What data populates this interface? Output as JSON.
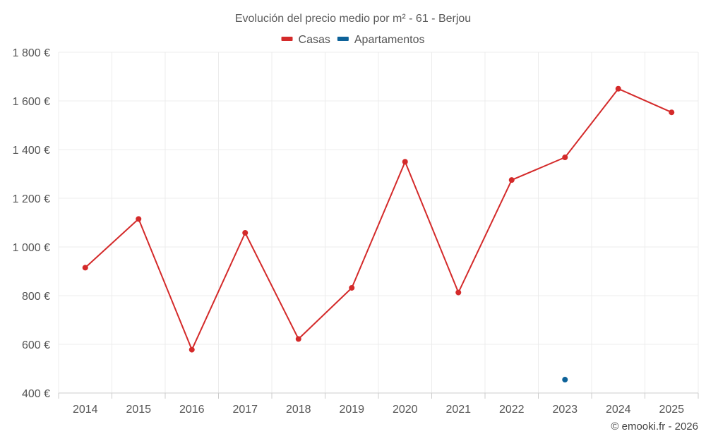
{
  "chart_data": {
    "type": "line",
    "title": "Evolución del precio medio por m² - 61 - Berjou",
    "categories": [
      "2014",
      "2015",
      "2016",
      "2017",
      "2018",
      "2019",
      "2020",
      "2021",
      "2022",
      "2023",
      "2024",
      "2025"
    ],
    "series": [
      {
        "name": "Casas",
        "color": "#d42a2a",
        "values": [
          915,
          1115,
          578,
          1058,
          622,
          832,
          1350,
          813,
          1275,
          1368,
          1650,
          1553
        ]
      },
      {
        "name": "Apartamentos",
        "color": "#0d6299",
        "values": [
          null,
          null,
          null,
          null,
          null,
          null,
          null,
          null,
          null,
          455,
          null,
          null
        ]
      }
    ],
    "ylim": [
      400,
      1800
    ],
    "yticks": [
      400,
      600,
      800,
      1000,
      1200,
      1400,
      1600,
      1800
    ],
    "ytick_labels": [
      "400 €",
      "600 €",
      "800 €",
      "1 000 €",
      "1 200 €",
      "1 400 €",
      "1 600 €",
      "1 800 €"
    ],
    "xlabel": "",
    "ylabel": "",
    "grid": true,
    "legend_position": "top-center"
  },
  "credit": "© emooki.fr - 2026"
}
